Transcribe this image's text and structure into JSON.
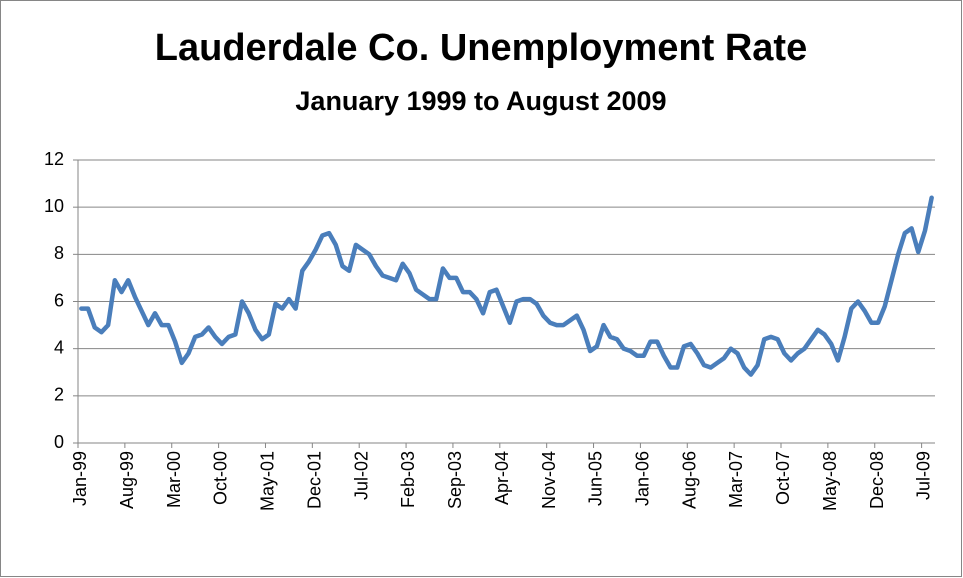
{
  "chart_data": {
    "type": "line",
    "title": "Lauderdale Co. Unemployment Rate",
    "subtitle": "January 1999 to August 2009",
    "categories": [
      "Jan-99",
      null,
      null,
      null,
      null,
      null,
      null,
      "Aug-99",
      null,
      null,
      null,
      null,
      null,
      null,
      "Mar-00",
      null,
      null,
      null,
      null,
      null,
      null,
      "Oct-00",
      null,
      null,
      null,
      null,
      null,
      null,
      "May-01",
      null,
      null,
      null,
      null,
      null,
      null,
      "Dec-01",
      null,
      null,
      null,
      null,
      null,
      null,
      "Jul-02",
      null,
      null,
      null,
      null,
      null,
      null,
      "Feb-03",
      null,
      null,
      null,
      null,
      null,
      null,
      "Sep-03",
      null,
      null,
      null,
      null,
      null,
      null,
      "Apr-04",
      null,
      null,
      null,
      null,
      null,
      null,
      "Nov-04",
      null,
      null,
      null,
      null,
      null,
      null,
      "Jun-05",
      null,
      null,
      null,
      null,
      null,
      null,
      "Jan-06",
      null,
      null,
      null,
      null,
      null,
      null,
      "Aug-06",
      null,
      null,
      null,
      null,
      null,
      null,
      "Mar-07",
      null,
      null,
      null,
      null,
      null,
      null,
      "Oct-07",
      null,
      null,
      null,
      null,
      null,
      null,
      "May-08",
      null,
      null,
      null,
      null,
      null,
      null,
      "Dec-08",
      null,
      null,
      null,
      null,
      null,
      null,
      "Jul-09",
      null
    ],
    "series": [
      {
        "color": "#4a7ebb",
        "values": [
          5.7,
          5.7,
          4.9,
          4.7,
          5.0,
          6.9,
          6.4,
          6.9,
          6.2,
          5.6,
          5.0,
          5.5,
          5.0,
          5.0,
          4.3,
          3.4,
          3.8,
          4.5,
          4.6,
          4.9,
          4.5,
          4.2,
          4.5,
          4.6,
          6.0,
          5.5,
          4.8,
          4.4,
          4.6,
          5.9,
          5.7,
          6.1,
          5.7,
          7.3,
          7.7,
          8.2,
          8.8,
          8.9,
          8.4,
          7.5,
          7.3,
          8.4,
          8.2,
          8.0,
          7.5,
          7.1,
          7.0,
          6.9,
          7.6,
          7.2,
          6.5,
          6.3,
          6.1,
          6.1,
          7.4,
          7.0,
          7.0,
          6.4,
          6.4,
          6.1,
          5.5,
          6.4,
          6.5,
          5.8,
          5.1,
          6.0,
          6.1,
          6.1,
          5.9,
          5.4,
          5.1,
          5.0,
          5.0,
          5.2,
          5.4,
          4.8,
          3.9,
          4.1,
          5.0,
          4.5,
          4.4,
          4.0,
          3.9,
          3.7,
          3.7,
          4.3,
          4.3,
          3.7,
          3.2,
          3.2,
          4.1,
          4.2,
          3.8,
          3.3,
          3.2,
          3.4,
          3.6,
          4.0,
          3.8,
          3.2,
          2.9,
          3.3,
          4.4,
          4.5,
          4.4,
          3.8,
          3.5,
          3.8,
          4.0,
          4.4,
          4.8,
          4.6,
          4.2,
          3.5,
          4.5,
          5.7,
          6.0,
          5.6,
          5.1,
          5.1,
          5.8,
          6.9,
          8.0,
          8.9,
          9.1,
          8.1,
          9.0,
          10.4
        ]
      }
    ],
    "ylim": [
      0,
      12
    ],
    "yticks": [
      0,
      2,
      4,
      6,
      8,
      10,
      12
    ],
    "grid": true
  }
}
